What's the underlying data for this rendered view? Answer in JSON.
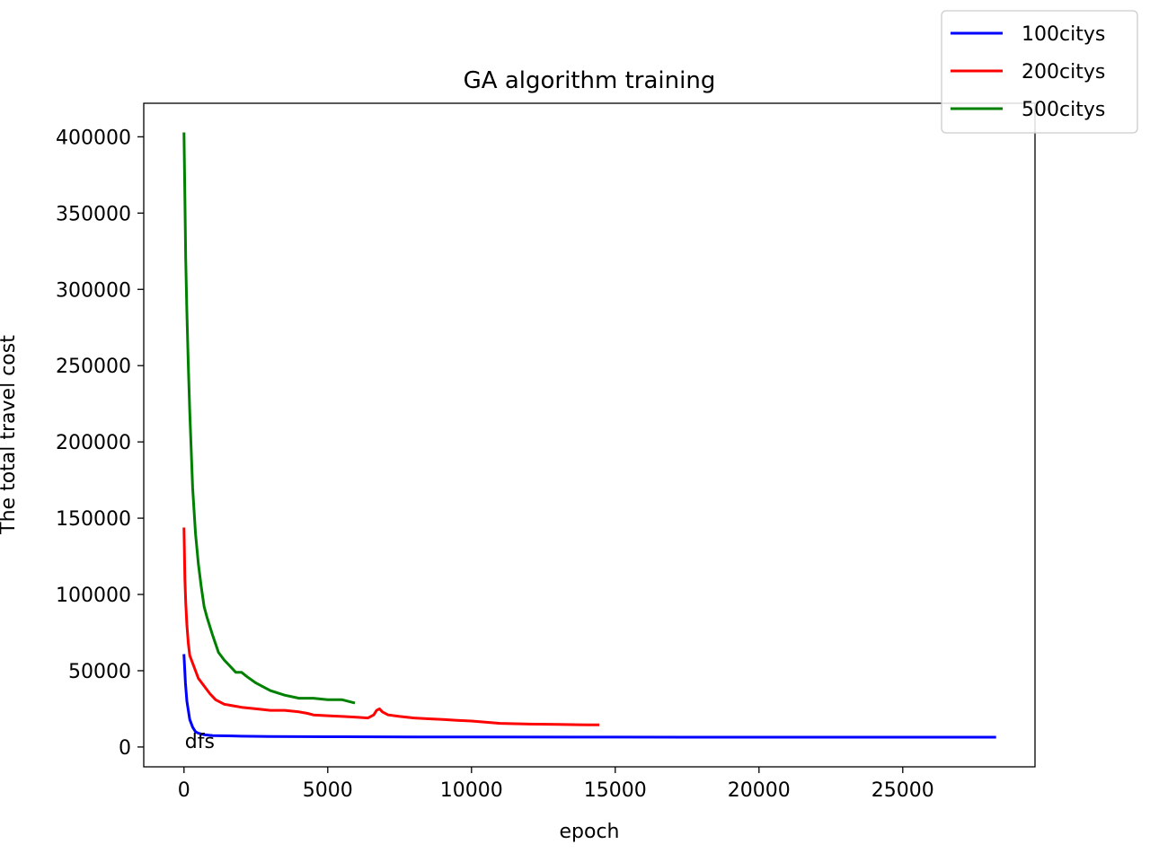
{
  "chart_data": {
    "type": "line",
    "title": "GA algorithm training",
    "xlabel": "epoch",
    "ylabel": "The total travel cost",
    "xlim": [
      -1400,
      29600
    ],
    "ylim": [
      -13000,
      422000
    ],
    "xticks": [
      0,
      5000,
      10000,
      15000,
      20000,
      25000
    ],
    "yticks": [
      0,
      50000,
      100000,
      150000,
      200000,
      250000,
      300000,
      350000,
      400000
    ],
    "grid": false,
    "legend_position": "top-right",
    "annotations": [
      {
        "text": "dfs",
        "x": 0,
        "y": 0
      }
    ],
    "series": [
      {
        "name": "100citys",
        "color": "#0000ff",
        "x": [
          0,
          50,
          100,
          200,
          300,
          400,
          500,
          700,
          1000,
          1500,
          2000,
          3000,
          4000,
          5000,
          8000,
          10000,
          15000,
          20000,
          25000,
          28200
        ],
        "y": [
          60000,
          42000,
          30000,
          18000,
          13000,
          10000,
          9000,
          8000,
          7500,
          7300,
          7100,
          6900,
          6800,
          6700,
          6600,
          6550,
          6500,
          6450,
          6400,
          6400
        ]
      },
      {
        "name": "200citys",
        "color": "#ff0000",
        "x": [
          0,
          30,
          60,
          100,
          150,
          200,
          300,
          400,
          500,
          700,
          900,
          1100,
          1400,
          1700,
          2000,
          2500,
          3000,
          3500,
          4000,
          4300,
          4500,
          5000,
          5500,
          6000,
          6400,
          6600,
          6700,
          6800,
          6900,
          7100,
          7500,
          8000,
          8500,
          9000,
          9500,
          10000,
          11000,
          12000,
          13000,
          14000,
          14400
        ],
        "y": [
          143000,
          110000,
          95000,
          80000,
          68000,
          60000,
          55000,
          50000,
          45000,
          40000,
          35000,
          31000,
          28000,
          27000,
          26000,
          25000,
          24000,
          24000,
          23000,
          22000,
          21000,
          20500,
          20000,
          19500,
          19000,
          21000,
          24000,
          25000,
          23000,
          21000,
          20000,
          19000,
          18500,
          18000,
          17500,
          17000,
          15500,
          15000,
          14800,
          14500,
          14500
        ]
      },
      {
        "name": "500citys",
        "color": "#008000",
        "x": [
          0,
          30,
          60,
          100,
          150,
          200,
          250,
          300,
          400,
          500,
          600,
          700,
          800,
          1000,
          1200,
          1400,
          1600,
          1800,
          2000,
          2200,
          2500,
          3000,
          3500,
          4000,
          4500,
          5000,
          5500,
          5900
        ],
        "y": [
          402000,
          360000,
          320000,
          285000,
          250000,
          220000,
          195000,
          170000,
          140000,
          120000,
          105000,
          92000,
          85000,
          73000,
          62000,
          57000,
          53000,
          49000,
          49000,
          46000,
          42000,
          37000,
          34000,
          32000,
          32000,
          31000,
          31000,
          29000
        ]
      }
    ]
  }
}
